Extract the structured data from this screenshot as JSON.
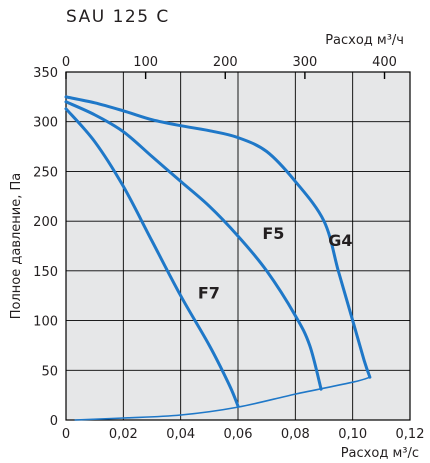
{
  "chart_data": {
    "type": "line",
    "title": "SAU 125 C",
    "ylabel": "Полное давление, Па",
    "xlabel_bottom": "Расход м³/с",
    "xlabel_top": "Расход м³/ч",
    "xlim": [
      0,
      0.12
    ],
    "ylim": [
      0,
      350
    ],
    "x_top_lim": [
      0,
      432
    ],
    "x_ticks": [
      0,
      0.02,
      0.04,
      0.06,
      0.08,
      0.1,
      0.12
    ],
    "x_tick_labels": [
      "0",
      "0,02",
      "0,04",
      "0,06",
      "0,08",
      "0,10",
      "0,12"
    ],
    "x_top_ticks": [
      0,
      100,
      200,
      300,
      400
    ],
    "x_top_tick_labels": [
      "0",
      "100",
      "200",
      "300",
      "400"
    ],
    "y_ticks": [
      0,
      50,
      100,
      150,
      200,
      250,
      300,
      350
    ],
    "y_tick_labels": [
      "0",
      "50",
      "100",
      "150",
      "200",
      "250",
      "300",
      "350"
    ],
    "grid": true,
    "series": [
      {
        "name": "G4",
        "label_at": [
          0.0915,
          175
        ],
        "points": [
          [
            0,
            325
          ],
          [
            0.01,
            319
          ],
          [
            0.02,
            311
          ],
          [
            0.03,
            302
          ],
          [
            0.04,
            296
          ],
          [
            0.05,
            291
          ],
          [
            0.06,
            284
          ],
          [
            0.07,
            270
          ],
          [
            0.08,
            240
          ],
          [
            0.09,
            200
          ],
          [
            0.095,
            150
          ],
          [
            0.1,
            100
          ],
          [
            0.104,
            60
          ],
          [
            0.106,
            43
          ]
        ]
      },
      {
        "name": "F5",
        "label_at": [
          0.0685,
          182
        ],
        "points": [
          [
            0,
            320
          ],
          [
            0.01,
            307
          ],
          [
            0.02,
            290
          ],
          [
            0.03,
            265
          ],
          [
            0.04,
            240
          ],
          [
            0.05,
            215
          ],
          [
            0.06,
            185
          ],
          [
            0.07,
            150
          ],
          [
            0.08,
            105
          ],
          [
            0.085,
            75
          ],
          [
            0.089,
            31
          ]
        ]
      },
      {
        "name": "F7",
        "label_at": [
          0.046,
          122
        ],
        "points": [
          [
            0,
            313
          ],
          [
            0.01,
            280
          ],
          [
            0.02,
            235
          ],
          [
            0.03,
            180
          ],
          [
            0.04,
            125
          ],
          [
            0.05,
            75
          ],
          [
            0.057,
            35
          ],
          [
            0.06,
            14
          ]
        ]
      },
      {
        "name": "",
        "points": [
          [
            0.003,
            0
          ],
          [
            0.02,
            2
          ],
          [
            0.04,
            5
          ],
          [
            0.06,
            13
          ],
          [
            0.08,
            26
          ],
          [
            0.1,
            38
          ],
          [
            0.106,
            43
          ]
        ]
      }
    ]
  }
}
